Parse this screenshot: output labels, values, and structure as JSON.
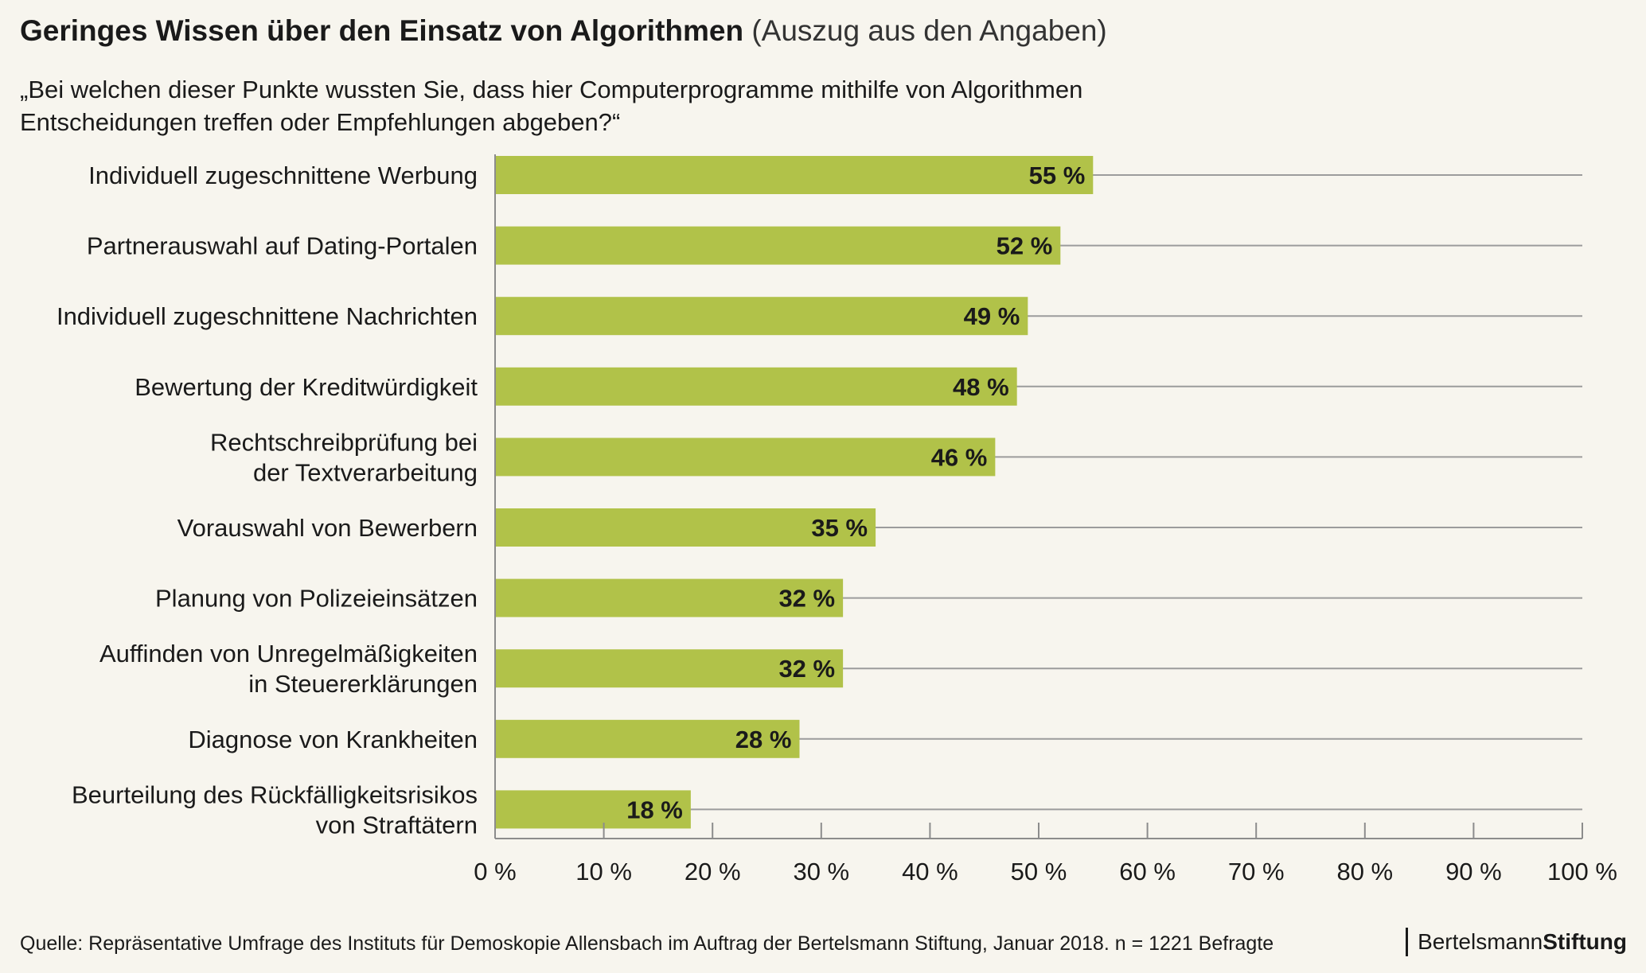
{
  "title": {
    "main": "Geringes Wissen über den Einsatz von Algorithmen",
    "sub": "(Auszug aus den Angaben)"
  },
  "question": "„Bei welchen dieser Punkte wussten Sie, dass hier Computerprogramme mithilfe von Algorithmen\n Entscheidungen treffen oder Empfehlungen abgeben?“",
  "source": "Quelle: Repräsentative Umfrage des Instituts für Demoskopie Allensbach im Auftrag der Bertelsmann Stiftung, Januar 2018. n = 1221 Befragte",
  "logo": {
    "part1": "Bertelsmann",
    "part2": "Stiftung"
  },
  "colors": {
    "bar": "#b1c249",
    "grid": "#9c9c9c",
    "axis": "#8c8c8c",
    "background": "#f7f5ee"
  },
  "chart_data": {
    "type": "bar",
    "orientation": "horizontal",
    "categories": [
      [
        "Individuell zugeschnittene Werbung"
      ],
      [
        "Partnerauswahl auf Dating-Portalen"
      ],
      [
        "Individuell zugeschnittene Nachrichten"
      ],
      [
        "Bewertung der Kreditwürdigkeit"
      ],
      [
        "Rechtschreibprüfung bei",
        "der Textverarbeitung"
      ],
      [
        "Vorauswahl von Bewerbern"
      ],
      [
        "Planung von Polizeieinsätzen"
      ],
      [
        "Auffinden von Unregelmäßigkeiten",
        "in Steuererklärungen"
      ],
      [
        "Diagnose von Krankheiten"
      ],
      [
        "Beurteilung des Rückfälligkeitsrisikos",
        "von Straftätern"
      ]
    ],
    "values": [
      55,
      52,
      49,
      48,
      46,
      35,
      32,
      32,
      28,
      18
    ],
    "value_labels": [
      "55 %",
      "52 %",
      "49 %",
      "48 %",
      "46 %",
      "35 %",
      "32 %",
      "32 %",
      "28 %",
      "18 %"
    ],
    "xlim": [
      0,
      100
    ],
    "xticks": [
      0,
      10,
      20,
      30,
      40,
      50,
      60,
      70,
      80,
      90,
      100
    ],
    "xtick_labels": [
      "0 %",
      "10 %",
      "20 %",
      "30 %",
      "40 %",
      "50 %",
      "60 %",
      "70 %",
      "80 %",
      "90 %",
      "100 %"
    ],
    "grid": true,
    "legend": "none"
  }
}
